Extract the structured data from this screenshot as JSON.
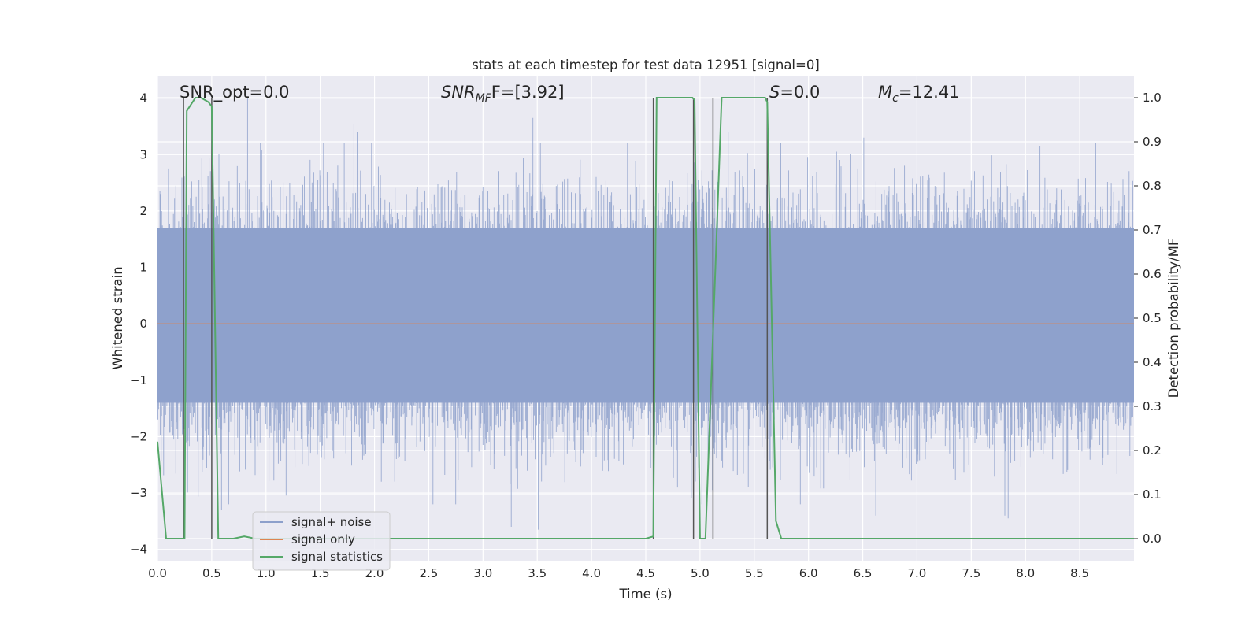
{
  "chart_data": {
    "type": "line",
    "title": "stats at each timestep for test data 12951 [signal=0]",
    "xlabel": "Time (s)",
    "ylabel": "Whitened strain",
    "ylabel_right": "Detection probability/MF",
    "xlim": [
      0.0,
      9.0
    ],
    "ylim": [
      -4.2,
      4.4
    ],
    "ylim_right": [
      -0.05,
      1.05
    ],
    "x_ticks": [
      0.0,
      0.5,
      1.0,
      1.5,
      2.0,
      2.5,
      3.0,
      3.5,
      4.0,
      4.5,
      5.0,
      5.5,
      6.0,
      6.5,
      7.0,
      7.5,
      8.0,
      8.5
    ],
    "x_tick_labels": [
      "0.0",
      "0.5",
      "1.0",
      "1.5",
      "2.0",
      "2.5",
      "3.0",
      "3.5",
      "4.0",
      "4.5",
      "5.0",
      "5.5",
      "6.0",
      "6.5",
      "7.0",
      "7.5",
      "8.0",
      "8.5"
    ],
    "y_ticks": [
      -4,
      -3,
      -2,
      -1,
      0,
      1,
      2,
      3,
      4
    ],
    "y_tick_labels": [
      "−4",
      "−3",
      "−2",
      "−1",
      "0",
      "1",
      "2",
      "3",
      "4"
    ],
    "y_right_ticks": [
      0.0,
      0.1,
      0.2,
      0.3,
      0.4,
      0.5,
      0.6,
      0.7,
      0.8,
      0.9,
      1.0
    ],
    "y_right_tick_labels": [
      "0.0",
      "0.1",
      "0.2",
      "0.3",
      "0.4",
      "0.5",
      "0.6",
      "0.7",
      "0.8",
      "0.9",
      "1.0"
    ],
    "annotations": {
      "snr_opt": "SNR_opt=0.0",
      "snr_mf_sym": "SNR",
      "snr_mf_sub": "MF",
      "snr_mf_val": "F=[3.92]",
      "s_sym": "S",
      "s_val": "=0.0",
      "mc_sym": "M",
      "mc_sub": "c",
      "mc_val": "=12.41"
    },
    "legend": {
      "position": "lower-left",
      "entries": [
        "signal+ noise",
        "signal only",
        "signal statistics"
      ]
    },
    "colors": {
      "noise": "#8da0cb",
      "signal": "#dd8452",
      "stats": "#55a868",
      "vlines": "#555555",
      "background": "#eaeaf2",
      "grid": "#ffffff"
    },
    "series": [
      {
        "name": "signal+ noise",
        "axis": "left",
        "description": "whitened strain noise, roughly Gaussian with unit variance",
        "envelope_core": [
          -1.4,
          1.7
        ],
        "peaks": [
          {
            "x": 0.83,
            "y": 4.0
          },
          {
            "x": 1.81,
            "y": 3.55
          },
          {
            "x": 1.84,
            "y": 3.4
          },
          {
            "x": 3.46,
            "y": 3.65
          },
          {
            "x": 5.26,
            "y": 3.4
          },
          {
            "x": 6.51,
            "y": 3.3
          },
          {
            "x": 3.26,
            "y": -3.6
          },
          {
            "x": 3.51,
            "y": -3.65
          },
          {
            "x": 7.81,
            "y": -3.4
          },
          {
            "x": 7.84,
            "y": -3.45
          },
          {
            "x": 6.62,
            "y": -3.4
          },
          {
            "x": 0.59,
            "y": -3.3
          }
        ]
      },
      {
        "name": "signal only",
        "axis": "left",
        "x": [
          0.0,
          9.0
        ],
        "y": [
          0.0,
          0.0
        ]
      },
      {
        "name": "signal statistics",
        "axis": "right",
        "x": [
          0.0,
          0.08,
          0.25,
          0.27,
          0.35,
          0.4,
          0.47,
          0.5,
          0.56,
          0.7,
          0.8,
          0.9,
          4.5,
          4.57,
          4.6,
          4.93,
          4.95,
          5.0,
          5.05,
          5.2,
          5.6,
          5.62,
          5.7,
          5.75,
          9.0
        ],
        "y": [
          0.22,
          0.0,
          0.0,
          0.97,
          1.0,
          1.0,
          0.99,
          0.98,
          0.0,
          0.0,
          0.005,
          0.0,
          0.0,
          0.005,
          1.0,
          1.0,
          0.995,
          0.0,
          0.0,
          1.0,
          1.0,
          0.99,
          0.04,
          0.0,
          0.0
        ]
      }
    ],
    "vertical_lines": [
      0.24,
      0.5,
      4.57,
      4.94,
      5.12,
      5.62
    ]
  }
}
